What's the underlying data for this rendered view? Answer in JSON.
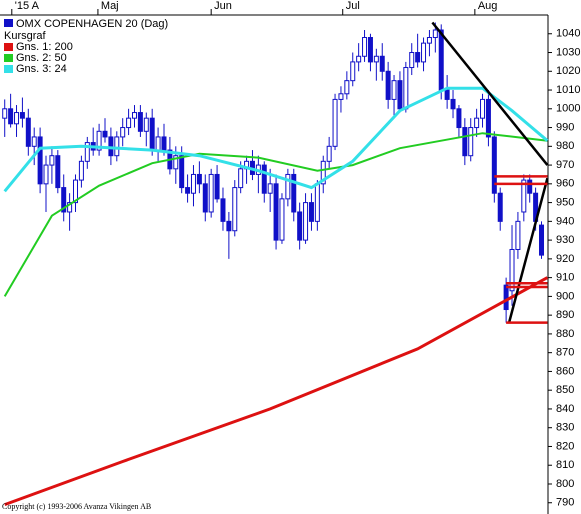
{
  "chart_data": {
    "type": "candlestick",
    "title": "OMX COPENHAGEN 20 (Dag)",
    "series": [
      {
        "name": "Kursgraf",
        "color": "#1010c8",
        "values": [
          [
            995,
            1005,
            985,
            1000
          ],
          [
            1000,
            1008,
            990,
            992
          ],
          [
            992,
            1002,
            985,
            998
          ],
          [
            998,
            1006,
            990,
            995
          ],
          [
            995,
            1000,
            975,
            980
          ],
          [
            980,
            990,
            970,
            985
          ],
          [
            985,
            990,
            955,
            960
          ],
          [
            960,
            975,
            945,
            970
          ],
          [
            970,
            980,
            960,
            975
          ],
          [
            975,
            978,
            955,
            958
          ],
          [
            958,
            965,
            940,
            945
          ],
          [
            945,
            955,
            935,
            950
          ],
          [
            950,
            965,
            945,
            962
          ],
          [
            962,
            975,
            958,
            972
          ],
          [
            972,
            985,
            968,
            982
          ],
          [
            982,
            990,
            975,
            978
          ],
          [
            978,
            992,
            975,
            988
          ],
          [
            988,
            995,
            982,
            985
          ],
          [
            985,
            990,
            970,
            975
          ],
          [
            975,
            988,
            972,
            985
          ],
          [
            985,
            995,
            980,
            990
          ],
          [
            990,
            1000,
            986,
            995
          ],
          [
            995,
            1002,
            990,
            998
          ],
          [
            998,
            1002,
            985,
            988
          ],
          [
            988,
            998,
            980,
            995
          ],
          [
            995,
            1000,
            975,
            978
          ],
          [
            978,
            990,
            972,
            985
          ],
          [
            985,
            992,
            975,
            978
          ],
          [
            978,
            985,
            965,
            968
          ],
          [
            968,
            980,
            960,
            975
          ],
          [
            975,
            980,
            955,
            958
          ],
          [
            958,
            965,
            950,
            955
          ],
          [
            955,
            970,
            948,
            965
          ],
          [
            965,
            972,
            955,
            960
          ],
          [
            960,
            965,
            940,
            945
          ],
          [
            945,
            968,
            942,
            965
          ],
          [
            965,
            970,
            950,
            952
          ],
          [
            952,
            958,
            935,
            940
          ],
          [
            940,
            945,
            920,
            935
          ],
          [
            935,
            962,
            932,
            958
          ],
          [
            958,
            972,
            955,
            968
          ],
          [
            968,
            975,
            960,
            972
          ],
          [
            972,
            978,
            962,
            965
          ],
          [
            965,
            975,
            955,
            970
          ],
          [
            970,
            972,
            950,
            955
          ],
          [
            955,
            968,
            945,
            960
          ],
          [
            960,
            965,
            925,
            930
          ],
          [
            930,
            955,
            928,
            952
          ],
          [
            952,
            968,
            948,
            965
          ],
          [
            965,
            968,
            940,
            945
          ],
          [
            945,
            950,
            925,
            930
          ],
          [
            930,
            955,
            928,
            950
          ],
          [
            950,
            955,
            935,
            940
          ],
          [
            940,
            962,
            935,
            960
          ],
          [
            960,
            975,
            955,
            972
          ],
          [
            972,
            985,
            968,
            980
          ],
          [
            980,
            1008,
            978,
            1005
          ],
          [
            1005,
            1012,
            998,
            1008
          ],
          [
            1008,
            1020,
            1005,
            1015
          ],
          [
            1015,
            1030,
            1012,
            1025
          ],
          [
            1025,
            1035,
            1020,
            1028
          ],
          [
            1028,
            1042,
            1025,
            1038
          ],
          [
            1038,
            1040,
            1020,
            1025
          ],
          [
            1025,
            1032,
            1015,
            1028
          ],
          [
            1028,
            1035,
            1015,
            1020
          ],
          [
            1020,
            1025,
            1000,
            1005
          ],
          [
            1005,
            1018,
            995,
            1015
          ],
          [
            1015,
            1020,
            998,
            1000
          ],
          [
            1000,
            1025,
            998,
            1022
          ],
          [
            1022,
            1035,
            1018,
            1030
          ],
          [
            1030,
            1040,
            1022,
            1025
          ],
          [
            1025,
            1038,
            1020,
            1035
          ],
          [
            1035,
            1042,
            1028,
            1038
          ],
          [
            1038,
            1046,
            1030,
            1042
          ],
          [
            1042,
            1045,
            1005,
            1010
          ],
          [
            1010,
            1018,
            1000,
            1005
          ],
          [
            1005,
            1010,
            995,
            1000
          ],
          [
            1000,
            1002,
            985,
            990
          ],
          [
            990,
            995,
            970,
            975
          ],
          [
            975,
            995,
            972,
            990
          ],
          [
            990,
            1000,
            985,
            995
          ],
          [
            995,
            1008,
            990,
            1005
          ],
          [
            1005,
            1010,
            980,
            985
          ],
          [
            985,
            988,
            950,
            955
          ],
          [
            955,
            958,
            935,
            940
          ],
          [
            906,
            910,
            886,
            893
          ],
          [
            903,
            938,
            895,
            925
          ],
          [
            925,
            945,
            920,
            940
          ],
          [
            945,
            965,
            940,
            962
          ],
          [
            962,
            965,
            950,
            955
          ],
          [
            955,
            958,
            935,
            940
          ],
          [
            938,
            940,
            920,
            922
          ]
        ]
      }
    ],
    "moving_averages": [
      {
        "name": "Gns. 1: 200",
        "color": "#dd1111",
        "x": [
          0,
          20,
          45,
          70,
          92
        ],
        "values": [
          789,
          812,
          840,
          872,
          910
        ]
      },
      {
        "name": "Gns. 2: 50",
        "color": "#22cc22",
        "x": [
          0,
          8,
          16,
          25,
          33,
          43,
          53,
          59,
          67,
          81,
          92
        ],
        "values": [
          900,
          943,
          959,
          971,
          976,
          974,
          967,
          970,
          979,
          987,
          983
        ]
      },
      {
        "name": "Gns. 3: 24",
        "color": "#33e0e8",
        "x": [
          0,
          6,
          13,
          25,
          33,
          43,
          52,
          59,
          67,
          75,
          81,
          86,
          92
        ],
        "values": [
          956,
          979,
          980,
          978,
          975,
          967,
          958,
          972,
          999,
          1011,
          1011,
          999,
          983
        ]
      }
    ],
    "trendlines": [
      {
        "color": "#000000",
        "x": [
          72.5,
          92
        ],
        "values": [
          1046,
          970
        ]
      },
      {
        "color": "#000000",
        "x": [
          85.5,
          92
        ],
        "values": [
          886,
          963
        ]
      },
      {
        "color": "#dd1111",
        "x": [
          83,
          92
        ],
        "values": [
          964,
          964
        ]
      },
      {
        "color": "#dd1111",
        "x": [
          83,
          92
        ],
        "values": [
          960,
          960
        ]
      },
      {
        "color": "#dd1111",
        "x": [
          85,
          92
        ],
        "values": [
          907,
          907
        ]
      },
      {
        "color": "#dd1111",
        "x": [
          85,
          92
        ],
        "values": [
          905,
          905
        ]
      },
      {
        "color": "#dd1111",
        "x": [
          85,
          92
        ],
        "values": [
          886,
          886
        ]
      }
    ],
    "xlim": [
      -0.8,
      92.1
    ],
    "xticks": [
      {
        "value": 1.2,
        "label": "'15 A"
      },
      {
        "value": 15.8,
        "label": "Maj"
      },
      {
        "value": 35,
        "label": "Jun"
      },
      {
        "value": 57.3,
        "label": "Jul"
      },
      {
        "value": 79.7,
        "label": "Aug"
      }
    ],
    "ylim": [
      784,
      1050
    ],
    "yticks": [
      790,
      800,
      810,
      820,
      830,
      840,
      850,
      860,
      870,
      880,
      890,
      900,
      910,
      920,
      930,
      940,
      950,
      960,
      970,
      980,
      990,
      1000,
      1010,
      1020,
      1030,
      1040
    ],
    "copyright": "Copyright (c) 1993-2006 Avanza Vikingen AB"
  }
}
